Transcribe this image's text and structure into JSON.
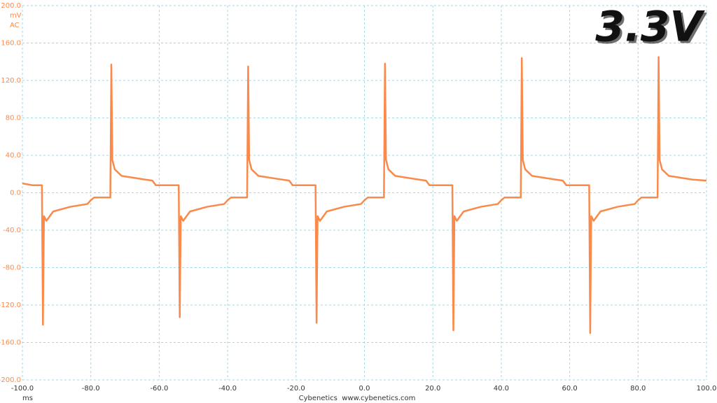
{
  "chart_data": {
    "type": "line",
    "title": "3.3V",
    "y_unit": "mV",
    "coupling": "AC",
    "x_unit": "ms",
    "footer": "Cybenetics  www.cybenetics.com",
    "color": "#f98a4b",
    "grid": true,
    "xlim": [
      -100,
      100
    ],
    "xticks": [
      {
        "value": -100,
        "label": "-100.0"
      },
      {
        "value": -80,
        "label": "-80.0"
      },
      {
        "value": -60,
        "label": "-60.0"
      },
      {
        "value": -40,
        "label": "-40.0"
      },
      {
        "value": -20,
        "label": "-20.0"
      },
      {
        "value": 0,
        "label": "0.0"
      },
      {
        "value": 20,
        "label": "20.0"
      },
      {
        "value": 40,
        "label": "40.0"
      },
      {
        "value": 60,
        "label": "60.0"
      },
      {
        "value": 80,
        "label": "80.0"
      },
      {
        "value": 100,
        "label": "100.0"
      }
    ],
    "ylim": [
      -200,
      200
    ],
    "yticks": [
      {
        "value": 200,
        "label": "200.0"
      },
      {
        "value": 160,
        "label": "160.0"
      },
      {
        "value": 120,
        "label": "120.0"
      },
      {
        "value": 80,
        "label": "80.0"
      },
      {
        "value": 40,
        "label": "40.0"
      },
      {
        "value": 0,
        "label": "0.0"
      },
      {
        "value": -40,
        "label": "-40.0"
      },
      {
        "value": -80,
        "label": "-80.0"
      },
      {
        "value": -120,
        "label": "-120.0"
      },
      {
        "value": -160,
        "label": "-160.0"
      },
      {
        "value": -200,
        "label": "-200.0"
      }
    ],
    "x": [
      -100,
      -97,
      -94.3,
      -94,
      -93.7,
      -93,
      -91,
      -86,
      -81,
      -80,
      -79,
      -74.3,
      -74,
      -73.7,
      -73,
      -71,
      -64,
      -62,
      -61,
      -54.3,
      -54,
      -53.7,
      -53,
      -51,
      -46,
      -41,
      -40,
      -39,
      -34.3,
      -34,
      -33.7,
      -33,
      -31,
      -24,
      -22,
      -21,
      -14.3,
      -14,
      -13.7,
      -13,
      -11,
      -6,
      -1,
      0,
      1,
      5.7,
      6,
      6.3,
      7,
      9,
      16,
      18,
      19,
      25.7,
      26,
      26.3,
      27,
      29,
      34,
      39,
      40,
      41,
      45.7,
      46,
      46.3,
      47,
      49,
      56,
      58,
      59,
      65.7,
      66,
      66.3,
      67,
      69,
      74,
      79,
      80,
      81,
      85.7,
      86,
      86.3,
      87,
      89,
      96,
      100
    ],
    "values": [
      10,
      8,
      8,
      -141,
      -25,
      -30,
      -20,
      -15,
      -12,
      -8,
      -5,
      -5,
      137,
      35,
      25,
      18,
      14,
      13,
      8,
      8,
      -133,
      -25,
      -30,
      -20,
      -15,
      -12,
      -8,
      -5,
      -5,
      135,
      35,
      25,
      18,
      14,
      13,
      8,
      8,
      -139,
      -25,
      -30,
      -20,
      -15,
      -12,
      -8,
      -5,
      -5,
      138,
      35,
      25,
      18,
      14,
      13,
      8,
      8,
      -147,
      -25,
      -30,
      -20,
      -15,
      -12,
      -8,
      -5,
      -5,
      144,
      35,
      25,
      18,
      14,
      13,
      8,
      8,
      -150,
      -25,
      -30,
      -20,
      -15,
      -12,
      -8,
      -5,
      -5,
      145,
      35,
      25,
      18,
      14,
      13
    ]
  }
}
